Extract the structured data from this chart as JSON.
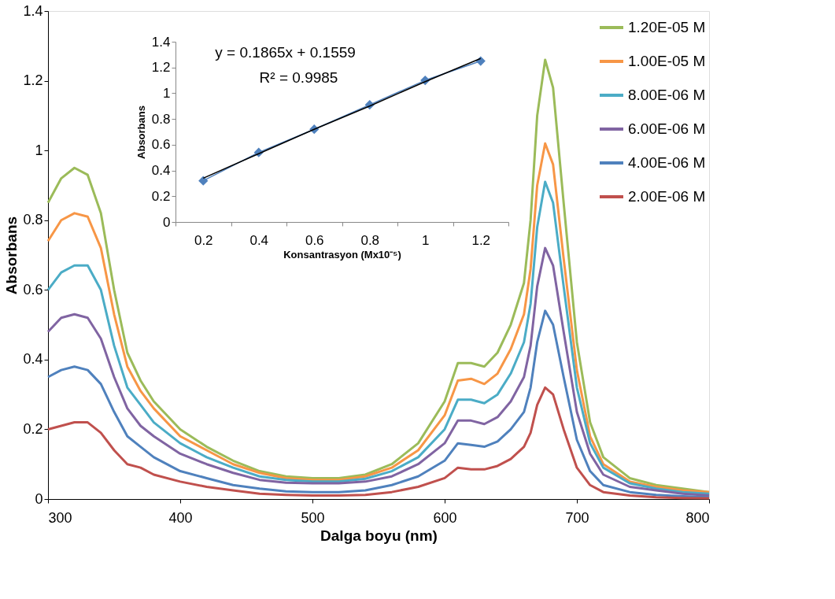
{
  "chart_data": [
    {
      "type": "line",
      "xlabel": "Dalga boyu (nm)",
      "ylabel": "Absorbans",
      "xlim": [
        300,
        800
      ],
      "xticks": [
        300,
        400,
        500,
        600,
        700,
        800
      ],
      "ylim": [
        0,
        1.4
      ],
      "yticks": [
        0,
        0.2,
        0.4,
        0.6,
        0.8,
        1,
        1.2,
        1.4
      ],
      "grid": false,
      "legend": "top right",
      "marker": "none",
      "x": [
        300,
        310,
        320,
        330,
        340,
        350,
        360,
        370,
        380,
        400,
        420,
        440,
        460,
        480,
        500,
        520,
        540,
        560,
        580,
        600,
        610,
        620,
        630,
        640,
        650,
        660,
        665,
        670,
        676,
        682,
        690,
        700,
        710,
        720,
        740,
        760,
        780,
        800
      ],
      "series": [
        {
          "name": "1.20E-05 M",
          "color": "#9bbb59",
          "values": [
            0.85,
            0.92,
            0.95,
            0.93,
            0.82,
            0.6,
            0.42,
            0.34,
            0.28,
            0.2,
            0.15,
            0.11,
            0.08,
            0.065,
            0.06,
            0.06,
            0.07,
            0.1,
            0.16,
            0.28,
            0.39,
            0.39,
            0.38,
            0.42,
            0.5,
            0.62,
            0.8,
            1.1,
            1.26,
            1.18,
            0.85,
            0.45,
            0.22,
            0.12,
            0.06,
            0.04,
            0.03,
            0.02
          ]
        },
        {
          "name": "1.00E-05 M",
          "color": "#f79646",
          "values": [
            0.74,
            0.8,
            0.82,
            0.81,
            0.72,
            0.53,
            0.38,
            0.31,
            0.26,
            0.18,
            0.14,
            0.1,
            0.075,
            0.06,
            0.055,
            0.055,
            0.065,
            0.09,
            0.14,
            0.24,
            0.34,
            0.345,
            0.33,
            0.36,
            0.43,
            0.53,
            0.66,
            0.9,
            1.02,
            0.96,
            0.69,
            0.37,
            0.18,
            0.1,
            0.05,
            0.035,
            0.025,
            0.02
          ]
        },
        {
          "name": "8.00E-06 M",
          "color": "#4bacc6",
          "values": [
            0.6,
            0.65,
            0.67,
            0.67,
            0.6,
            0.44,
            0.32,
            0.27,
            0.22,
            0.16,
            0.12,
            0.09,
            0.065,
            0.055,
            0.05,
            0.05,
            0.058,
            0.08,
            0.12,
            0.2,
            0.285,
            0.285,
            0.275,
            0.3,
            0.36,
            0.45,
            0.56,
            0.78,
            0.91,
            0.85,
            0.61,
            0.32,
            0.16,
            0.09,
            0.045,
            0.03,
            0.02,
            0.015
          ]
        },
        {
          "name": "6.00E-06 M",
          "color": "#8064a2",
          "values": [
            0.48,
            0.52,
            0.53,
            0.52,
            0.46,
            0.35,
            0.26,
            0.21,
            0.18,
            0.13,
            0.1,
            0.075,
            0.055,
            0.047,
            0.045,
            0.045,
            0.05,
            0.065,
            0.1,
            0.16,
            0.225,
            0.225,
            0.215,
            0.235,
            0.28,
            0.35,
            0.44,
            0.61,
            0.72,
            0.67,
            0.48,
            0.25,
            0.13,
            0.07,
            0.035,
            0.025,
            0.015,
            0.01
          ]
        },
        {
          "name": "4.00E-06 M",
          "color": "#4f81bd",
          "values": [
            0.35,
            0.37,
            0.38,
            0.37,
            0.33,
            0.25,
            0.18,
            0.15,
            0.12,
            0.08,
            0.06,
            0.04,
            0.03,
            0.022,
            0.02,
            0.02,
            0.025,
            0.04,
            0.065,
            0.11,
            0.16,
            0.155,
            0.15,
            0.165,
            0.2,
            0.25,
            0.32,
            0.45,
            0.54,
            0.5,
            0.35,
            0.17,
            0.08,
            0.04,
            0.02,
            0.012,
            0.008,
            0.005
          ]
        },
        {
          "name": "2.00E-06 M",
          "color": "#c0504d",
          "values": [
            0.2,
            0.21,
            0.22,
            0.22,
            0.19,
            0.14,
            0.1,
            0.09,
            0.07,
            0.05,
            0.035,
            0.025,
            0.015,
            0.012,
            0.01,
            0.01,
            0.012,
            0.02,
            0.035,
            0.06,
            0.09,
            0.085,
            0.085,
            0.095,
            0.115,
            0.15,
            0.19,
            0.27,
            0.32,
            0.3,
            0.2,
            0.09,
            0.04,
            0.02,
            0.01,
            0.005,
            0.003,
            0.002
          ]
        }
      ]
    },
    {
      "type": "line",
      "xlabel": "Konsantrasyon (Mx10⁻⁵)",
      "ylabel": "Absorbans",
      "ylim": [
        0,
        1.4
      ],
      "yticks": [
        0,
        0.2,
        0.4,
        0.6,
        0.8,
        1,
        1.2,
        1.4
      ],
      "grid": false,
      "marker": "diamond",
      "categories": [
        "0.2",
        "0.4",
        "0.6",
        "0.8",
        "1",
        "1.2"
      ],
      "annotations": [
        "y = 0.1865x + 0.1559",
        "R² = 0.9985"
      ],
      "series": [
        {
          "color": "#4f81bd",
          "values": [
            0.32,
            0.54,
            0.72,
            0.91,
            1.1,
            1.25
          ]
        },
        {
          "type": "line",
          "marker": "none",
          "color": "#000000",
          "values": [
            0.34,
            0.53,
            0.72,
            0.9,
            1.09,
            1.27
          ]
        }
      ]
    }
  ]
}
